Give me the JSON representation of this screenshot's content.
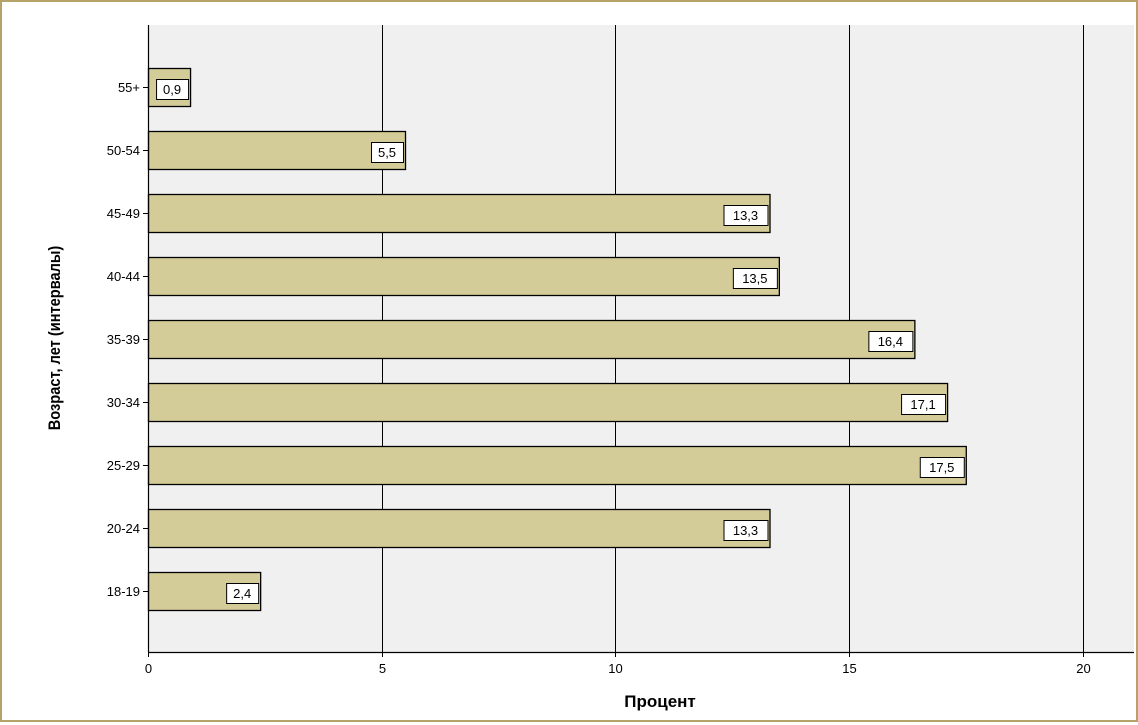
{
  "chart_data": {
    "type": "bar",
    "orientation": "horizontal",
    "categories": [
      "55+",
      "50-54",
      "45-49",
      "40-44",
      "35-39",
      "30-34",
      "25-29",
      "20-24",
      "18-19"
    ],
    "values": [
      0.9,
      5.5,
      13.3,
      13.5,
      16.4,
      17.1,
      17.5,
      13.3,
      2.4
    ],
    "data_labels": [
      "0,9",
      "5,5",
      "13,3",
      "13,5",
      "16,4",
      "17,1",
      "17,5",
      "13,3",
      "2,4"
    ],
    "x_ticks": [
      0,
      5,
      10,
      15,
      20
    ],
    "x_tick_labels": [
      "0",
      "5",
      "10",
      "15",
      "20"
    ],
    "xlim": [
      0,
      21.1
    ],
    "xlabel": "Процент",
    "ylabel": "Возраст, лет (интервалы)",
    "grid": "vertical",
    "legend": "none"
  },
  "colors": {
    "bar_fill": "#d4cc98",
    "plot_background": "#f0f0f0",
    "frame_border": "#b5a36a",
    "grid_line": "#000000"
  }
}
